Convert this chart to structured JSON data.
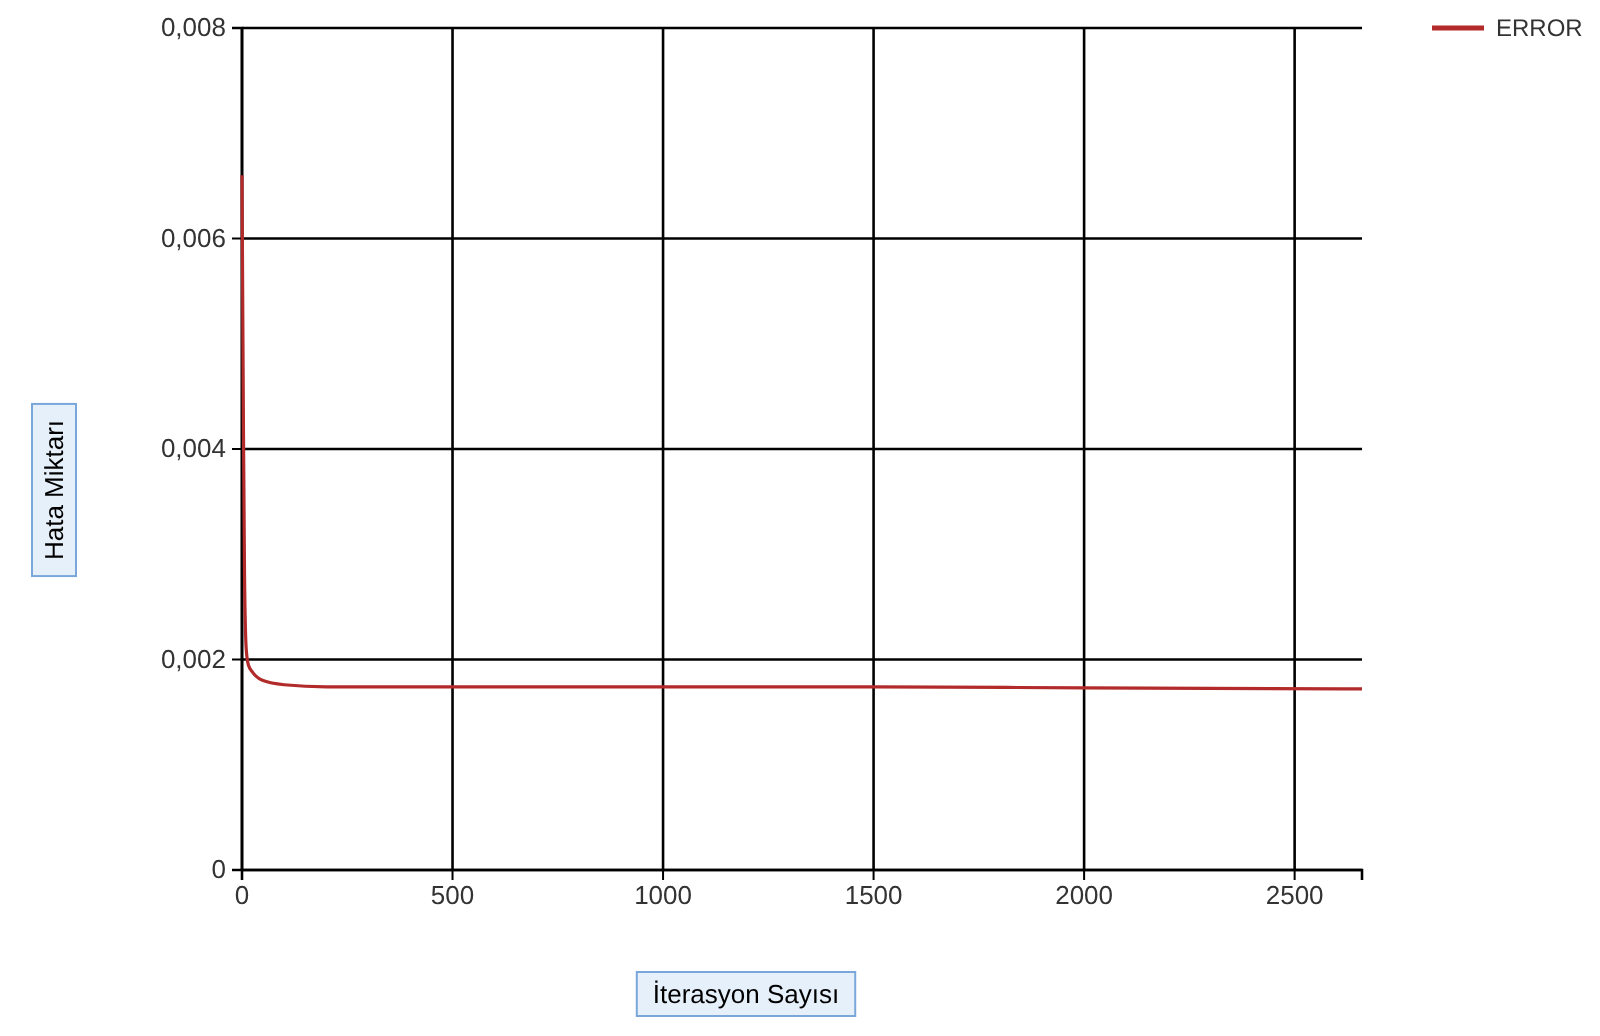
{
  "chart_data": {
    "type": "line",
    "xlabel": "İterasyon Sayısı",
    "ylabel": "Hata Miktarı",
    "xlim": [
      0,
      2660
    ],
    "xticks": [
      0,
      500,
      1000,
      1500,
      2000,
      2500
    ],
    "ylim": [
      0,
      0.008
    ],
    "yticks": [
      {
        "value": 0,
        "label": "0"
      },
      {
        "value": 0.002,
        "label": "0,002"
      },
      {
        "value": 0.004,
        "label": "0,004"
      },
      {
        "value": 0.006,
        "label": "0,006"
      },
      {
        "value": 0.008,
        "label": "0,008"
      }
    ],
    "grid": true,
    "legend": "top right",
    "line_style": "solid",
    "marker": "none",
    "series": [
      {
        "name": "ERROR",
        "color": "#b22a2a",
        "x": [
          0,
          3,
          6,
          10,
          15,
          25,
          50,
          100,
          200,
          500,
          1000,
          1500,
          2000,
          2660
        ],
        "values": [
          0.0066,
          0.0045,
          0.0028,
          0.0021,
          0.00195,
          0.00188,
          0.0018,
          0.00176,
          0.00174,
          0.00174,
          0.00174,
          0.00174,
          0.00173,
          0.00172
        ]
      }
    ]
  }
}
